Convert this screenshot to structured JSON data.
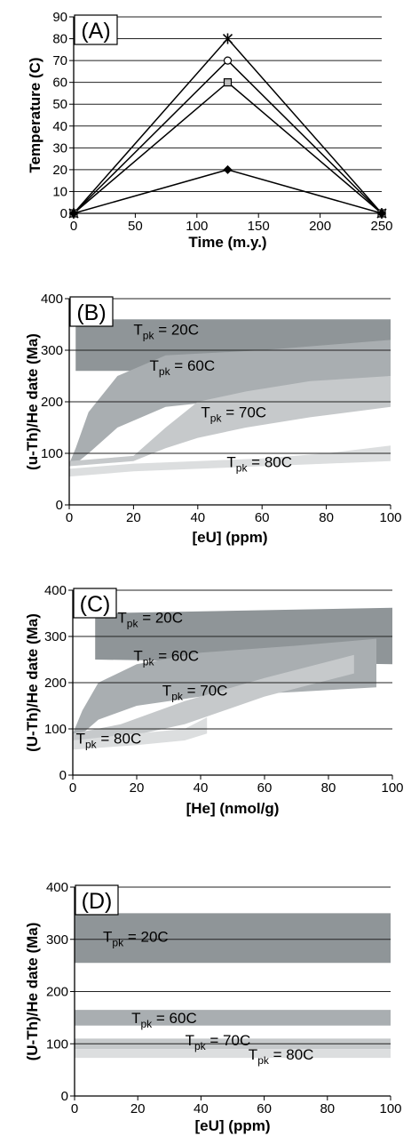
{
  "colors": {
    "axis": "#000000",
    "grid": "#222222",
    "marker_fill": "#ffffff",
    "marker_square_fill": "#bdbdbd",
    "band_dark": "#8f9598",
    "band_mid": "#a9aeb1",
    "band_light": "#c6c9cb",
    "band_lighter": "#dcdedf"
  },
  "chart_data": [
    {
      "panel": "(A)",
      "type": "line",
      "xlabel": "Time (m.y.)",
      "ylabel": "Temperature (C)",
      "xlim": [
        0,
        250
      ],
      "ylim": [
        0,
        90
      ],
      "xticks": [
        "0",
        "50",
        "100",
        "150",
        "200",
        "250"
      ],
      "yticks": [
        "0",
        "10",
        "20",
        "30",
        "40",
        "50",
        "60",
        "70",
        "80",
        "90"
      ],
      "grid": "horizontal",
      "series": [
        {
          "marker": "star",
          "x": [
            0,
            125,
            250
          ],
          "y": [
            0,
            80,
            0
          ]
        },
        {
          "marker": "circle",
          "x": [
            0,
            125,
            250
          ],
          "y": [
            0,
            70,
            0
          ]
        },
        {
          "marker": "square",
          "x": [
            0,
            125,
            250
          ],
          "y": [
            0,
            60,
            0
          ]
        },
        {
          "marker": "diamond",
          "x": [
            0,
            125,
            250
          ],
          "y": [
            0,
            20,
            0
          ]
        }
      ]
    },
    {
      "panel": "(B)",
      "type": "area",
      "xlabel": "[eU] (ppm)",
      "ylabel": "(u-Th)/He date (Ma)",
      "xlim": [
        0,
        100
      ],
      "ylim": [
        0,
        400
      ],
      "xticks": [
        "0",
        "20",
        "40",
        "60",
        "80",
        "100"
      ],
      "yticks": [
        "0",
        "100",
        "200",
        "300",
        "400"
      ],
      "grid": "horizontal",
      "bands": [
        {
          "label": "Tpk = 20C",
          "text_main": "T",
          "text_sub": "pk",
          "text_rest": " = 20C",
          "color": "dark",
          "label_at": [
            20,
            330
          ],
          "x": [
            2,
            100
          ],
          "upper": [
            360,
            360
          ],
          "lower": [
            260,
            260
          ]
        },
        {
          "label": "Tpk = 60C",
          "text_main": "T",
          "text_sub": "pk",
          "text_rest": " = 60C",
          "color": "mid",
          "label_at": [
            25,
            260
          ],
          "x": [
            0,
            2,
            6,
            15,
            30,
            60,
            100
          ],
          "upper": [
            80,
            110,
            180,
            250,
            290,
            300,
            320
          ],
          "lower": [
            75,
            80,
            100,
            150,
            190,
            210,
            250
          ]
        },
        {
          "label": "Tpk = 70C",
          "text_main": "T",
          "text_sub": "pk",
          "text_rest": " = 70C",
          "color": "light",
          "label_at": [
            41,
            170
          ],
          "x": [
            0,
            20,
            30,
            40,
            55,
            75,
            100
          ],
          "upper": [
            85,
            95,
            150,
            200,
            220,
            240,
            250
          ],
          "lower": [
            75,
            85,
            110,
            130,
            150,
            170,
            190
          ]
        },
        {
          "label": "Tpk = 80C",
          "text_main": "T",
          "text_sub": "pk",
          "text_rest": " = 80C",
          "color": "lighter",
          "label_at": [
            49,
            73
          ],
          "x": [
            0,
            20,
            40,
            60,
            80,
            100
          ],
          "upper": [
            70,
            80,
            85,
            90,
            100,
            115
          ],
          "lower": [
            55,
            65,
            70,
            75,
            80,
            85
          ]
        }
      ]
    },
    {
      "panel": "(C)",
      "type": "area",
      "xlabel": "[He] (nmol/g)",
      "ylabel": "(U-Th)/He date (Ma)",
      "xlim": [
        0,
        100
      ],
      "ylim": [
        0,
        400
      ],
      "xticks": [
        "0",
        "20",
        "40",
        "60",
        "80",
        "100"
      ],
      "yticks": [
        "0",
        "100",
        "200",
        "300",
        "400"
      ],
      "grid": "horizontal",
      "bands": [
        {
          "label": "Tpk = 20C",
          "text_main": "T",
          "text_sub": "pk",
          "text_rest": " = 20C",
          "color": "dark",
          "label_at": [
            14,
            330
          ],
          "x": [
            7,
            100
          ],
          "upper": [
            350,
            362
          ],
          "lower": [
            250,
            240
          ]
        },
        {
          "label": "Tpk = 60C",
          "text_main": "T",
          "text_sub": "pk",
          "text_rest": " = 60C",
          "color": "mid",
          "label_at": [
            19,
            247
          ],
          "x": [
            0,
            3,
            8,
            20,
            40,
            70,
            95
          ],
          "upper": [
            90,
            140,
            200,
            240,
            265,
            280,
            295
          ],
          "lower": [
            80,
            90,
            120,
            150,
            170,
            180,
            190
          ]
        },
        {
          "label": "Tpk = 70C",
          "text_main": "T",
          "text_sub": "pk",
          "text_rest": " = 70C",
          "color": "light",
          "label_at": [
            28,
            172
          ],
          "x": [
            0,
            15,
            35,
            60,
            88
          ],
          "upper": [
            90,
            110,
            160,
            210,
            260
          ],
          "lower": [
            75,
            80,
            110,
            170,
            220
          ]
        },
        {
          "label": "Tpk = 80C",
          "text_main": "T",
          "text_sub": "pk",
          "text_rest": " = 80C",
          "color": "lighter",
          "label_at": [
            1,
            68
          ],
          "x": [
            0,
            20,
            35,
            42
          ],
          "upper": [
            75,
            90,
            100,
            125
          ],
          "lower": [
            55,
            65,
            75,
            90
          ]
        }
      ]
    },
    {
      "panel": "(D)",
      "type": "area",
      "xlabel": "[eU] (ppm)",
      "ylabel": "(U-Th)/He date (Ma)",
      "xlim": [
        0,
        100
      ],
      "ylim": [
        0,
        400
      ],
      "xticks": [
        "0",
        "20",
        "40",
        "60",
        "80",
        "100"
      ],
      "yticks": [
        "0",
        "100",
        "200",
        "300",
        "400"
      ],
      "grid": "horizontal",
      "bands": [
        {
          "label": "Tpk = 20C",
          "text_main": "T",
          "text_sub": "pk",
          "text_rest": " = 20C",
          "color": "dark",
          "label_at": [
            9,
            295
          ],
          "x": [
            0,
            100
          ],
          "upper": [
            350,
            350
          ],
          "lower": [
            255,
            255
          ]
        },
        {
          "label": "Tpk = 60C",
          "text_main": "T",
          "text_sub": "pk",
          "text_rest": " = 60C",
          "color": "mid",
          "label_at": [
            18,
            140
          ],
          "x": [
            0,
            100
          ],
          "upper": [
            165,
            165
          ],
          "lower": [
            135,
            135
          ]
        },
        {
          "label": "Tpk = 70C",
          "text_main": "T",
          "text_sub": "pk",
          "text_rest": " = 70C",
          "color": "light",
          "label_at": [
            35,
            97
          ],
          "x": [
            0,
            100
          ],
          "upper": [
            110,
            110
          ],
          "lower": [
            90,
            90
          ]
        },
        {
          "label": "Tpk = 80C",
          "text_main": "T",
          "text_sub": "pk",
          "text_rest": " = 80C",
          "color": "lighter",
          "label_at": [
            55,
            70
          ],
          "x": [
            0,
            100
          ],
          "upper": [
            90,
            90
          ],
          "lower": [
            73,
            73
          ]
        }
      ]
    }
  ]
}
